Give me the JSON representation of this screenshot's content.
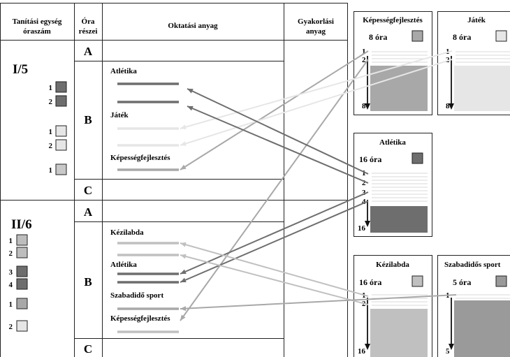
{
  "header": {
    "col1": [
      "Tanítási egység",
      "óraszám"
    ],
    "col2": [
      "Óra",
      "részei"
    ],
    "col3": "Oktatási anyag",
    "col4": [
      "Gyakorlási",
      "anyag"
    ]
  },
  "units": [
    {
      "label": "I/5",
      "parts": [
        "A",
        "B",
        "C"
      ],
      "squares": [
        {
          "n": "1",
          "color": "#6e6e6e"
        },
        {
          "n": "2",
          "color": "#6e6e6e"
        },
        {
          "n": "1",
          "color": "#e6e6e6"
        },
        {
          "n": "2",
          "color": "#e6e6e6"
        },
        {
          "n": "1",
          "color": "#c8c8c8"
        }
      ],
      "topics": [
        "Atlétika",
        "Játék",
        "Képességfejlesztés"
      ]
    },
    {
      "label": "II/6",
      "parts": [
        "A",
        "B",
        "C"
      ],
      "squares": [
        {
          "n": "1",
          "color": "#bdbdbd"
        },
        {
          "n": "2",
          "color": "#bdbdbd"
        },
        {
          "n": "3",
          "color": "#6e6e6e"
        },
        {
          "n": "4",
          "color": "#6e6e6e"
        },
        {
          "n": "1",
          "color": "#a8a8a8"
        },
        {
          "n": "2",
          "color": "#e6e6e6"
        }
      ],
      "topics": [
        "Kézilabda",
        "Atlétika",
        "Szabadidő sport",
        "Képességfejlesztés"
      ]
    }
  ],
  "boxes": [
    {
      "title": "Képességfejlesztés",
      "hours": "8 óra",
      "color": "#a8a8a8",
      "scale": [
        "1",
        "2",
        "8"
      ]
    },
    {
      "title": "Játék",
      "hours": "8 óra",
      "color": "#e6e6e6",
      "scale": [
        "1",
        "2",
        "8"
      ]
    },
    {
      "title": "Atlétika",
      "hours": "16 óra",
      "color": "#6e6e6e",
      "scale": [
        "1",
        "2",
        "3",
        "4",
        "16"
      ]
    },
    {
      "title": "Kézilabda",
      "hours": "16 óra",
      "color": "#c0c0c0",
      "scale": [
        "1",
        "2",
        "16"
      ]
    },
    {
      "title": "Szabadidős sport",
      "hours": "5 óra",
      "color": "#9a9a9a",
      "scale": [
        "1",
        "5"
      ]
    }
  ],
  "colors": {
    "dark": "#6e6e6e",
    "light": "#e6e6e6",
    "mid": "#a8a8a8",
    "kezilabda": "#c0c0c0",
    "line": "#222222"
  }
}
